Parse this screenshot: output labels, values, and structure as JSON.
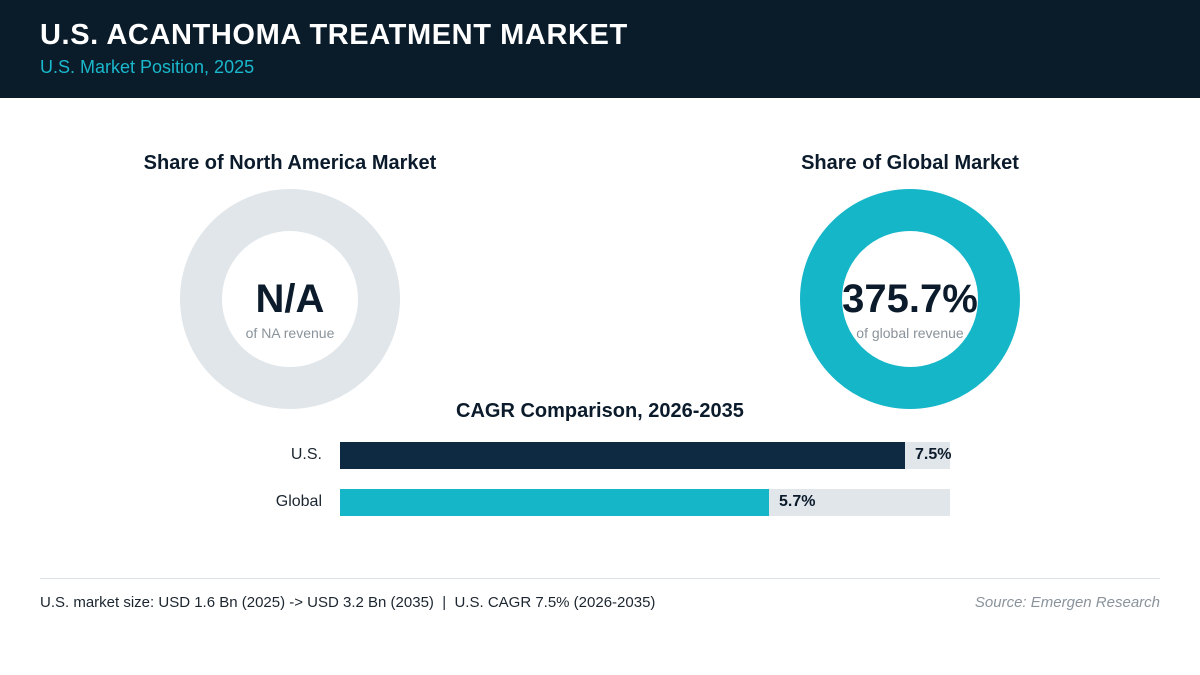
{
  "header": {
    "title": "U.S. ACANTHOMA TREATMENT MARKET",
    "subtitle": "U.S. Market Position, 2025"
  },
  "colors": {
    "header_bg": "#0a1b2a",
    "accent_teal": "#16b6c9",
    "navy": "#0e2a42",
    "track_gray": "#e1e6ea"
  },
  "chart_data": [
    {
      "type": "pie",
      "title": "Share of North America Market",
      "value_label": "N/A",
      "sub_label": "of NA revenue",
      "share": null,
      "color": "#e1e6ea"
    },
    {
      "type": "pie",
      "title": "Share of Global Market",
      "value_label": "375.7%",
      "sub_label": "of global revenue",
      "share": 375.7,
      "color": "#16b6c9"
    },
    {
      "type": "bar",
      "orientation": "horizontal",
      "title": "CAGR Comparison, 2026-2035",
      "categories": [
        "U.S.",
        "Global"
      ],
      "values": [
        7.5,
        5.7
      ],
      "value_labels": [
        "7.5%",
        "5.7%"
      ],
      "colors": [
        "#0e2a42",
        "#16b6c9"
      ],
      "xlim": [
        0,
        8.1
      ]
    }
  ],
  "footer": {
    "summary": "U.S. market size: USD 1.6 Bn (2025) -> USD 3.2 Bn (2035)  |  U.S. CAGR 7.5% (2026-2035)",
    "source": "Source: Emergen Research"
  }
}
